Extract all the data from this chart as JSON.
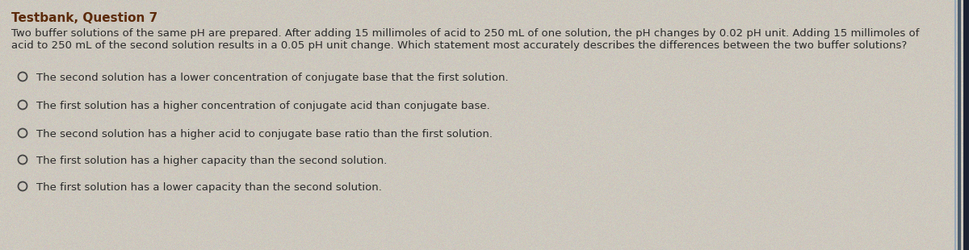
{
  "title": "Testbank, Question 7",
  "background_color": "#cdc8be",
  "title_color": "#5c2a0a",
  "body_color": "#2a2a2a",
  "paragraph_line1": "Two buffer solutions of the same pH are prepared. After adding 15 millimoles of acid to 250 mL of one solution, the pH changes by 0.02 pH unit. Adding 15 millimoles of",
  "paragraph_line2": "acid to 250 mL of the second solution results in a 0.05 pH unit change. Which statement most accurately describes the differences between the two buffer solutions?",
  "options": [
    "The second solution has a lower concentration of conjugate base that the first solution.",
    "The first solution has a higher concentration of conjugate acid than conjugate base.",
    "The second solution has a higher acid to conjugate base ratio than the first solution.",
    "The first solution has a higher capacity than the second solution.",
    "The first solution has a lower capacity than the second solution."
  ],
  "title_fontsize": 11.0,
  "body_fontsize": 9.5,
  "option_fontsize": 9.5,
  "circle_color": "#444444",
  "right_border_color": "#6a7a8a",
  "right_border2_color": "#1a2a3a"
}
